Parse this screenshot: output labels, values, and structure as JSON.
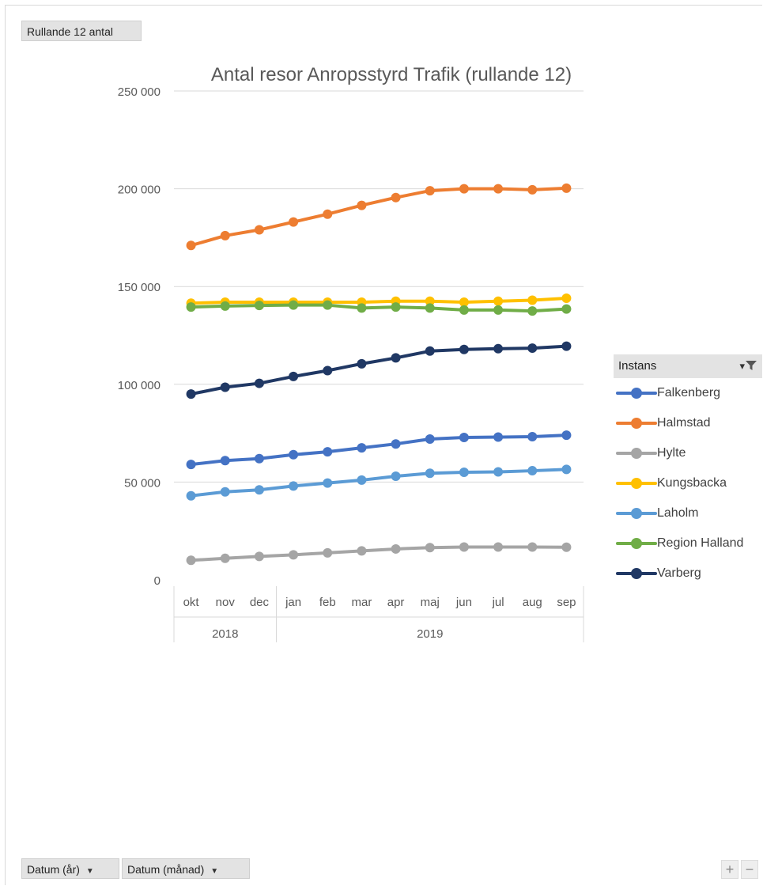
{
  "pivot": {
    "value_field": "Rullande 12 antal",
    "axis_fields": [
      "Datum (år)",
      "Datum (månad)"
    ],
    "legend_field": "Instans",
    "zoom_in": "+",
    "zoom_out": "−"
  },
  "chart_data": {
    "type": "line",
    "title": "Antal resor Anropsstyrd Trafik (rullande 12)",
    "xlabel": "",
    "ylabel": "",
    "ylim": [
      0,
      250000
    ],
    "yticks": [
      0,
      50000,
      100000,
      150000,
      200000,
      250000
    ],
    "ytick_labels": [
      "0",
      "50 000",
      "100 000",
      "150 000",
      "200 000",
      "250 000"
    ],
    "grid": true,
    "legend_position": "right",
    "categories": [
      "okt",
      "nov",
      "dec",
      "jan",
      "feb",
      "mar",
      "apr",
      "maj",
      "jun",
      "jul",
      "aug",
      "sep"
    ],
    "category_groups": [
      {
        "label": "2018",
        "count": 3
      },
      {
        "label": "2019",
        "count": 9
      }
    ],
    "series": [
      {
        "name": "Falkenberg",
        "color": "#4472c4",
        "values": [
          59000,
          61000,
          62000,
          64000,
          65500,
          67500,
          69500,
          72000,
          72800,
          73000,
          73200,
          74000
        ]
      },
      {
        "name": "Halmstad",
        "color": "#ed7d31",
        "values": [
          171000,
          176000,
          179000,
          183000,
          187000,
          191500,
          195500,
          199000,
          200000,
          200000,
          199500,
          200300
        ]
      },
      {
        "name": "Hylte",
        "color": "#a5a5a5",
        "values": [
          10000,
          11000,
          12000,
          12800,
          13800,
          14800,
          15800,
          16500,
          16800,
          16800,
          16800,
          16700
        ]
      },
      {
        "name": "Kungsbacka",
        "color": "#ffc000",
        "values": [
          141500,
          142000,
          142000,
          142000,
          142000,
          142000,
          142500,
          142500,
          142000,
          142500,
          143000,
          144000
        ]
      },
      {
        "name": "Laholm",
        "color": "#5b9bd5",
        "values": [
          43000,
          45000,
          46000,
          48000,
          49500,
          51000,
          53000,
          54500,
          55000,
          55200,
          55800,
          56500
        ]
      },
      {
        "name": "Region Halland",
        "color": "#70ad47",
        "values": [
          139500,
          140000,
          140300,
          140500,
          140500,
          139000,
          139500,
          139000,
          138000,
          138000,
          137500,
          138500
        ]
      },
      {
        "name": "Varberg",
        "color": "#203864",
        "values": [
          95000,
          98500,
          100500,
          104000,
          107000,
          110500,
          113500,
          117000,
          117800,
          118200,
          118500,
          119500
        ]
      }
    ]
  }
}
